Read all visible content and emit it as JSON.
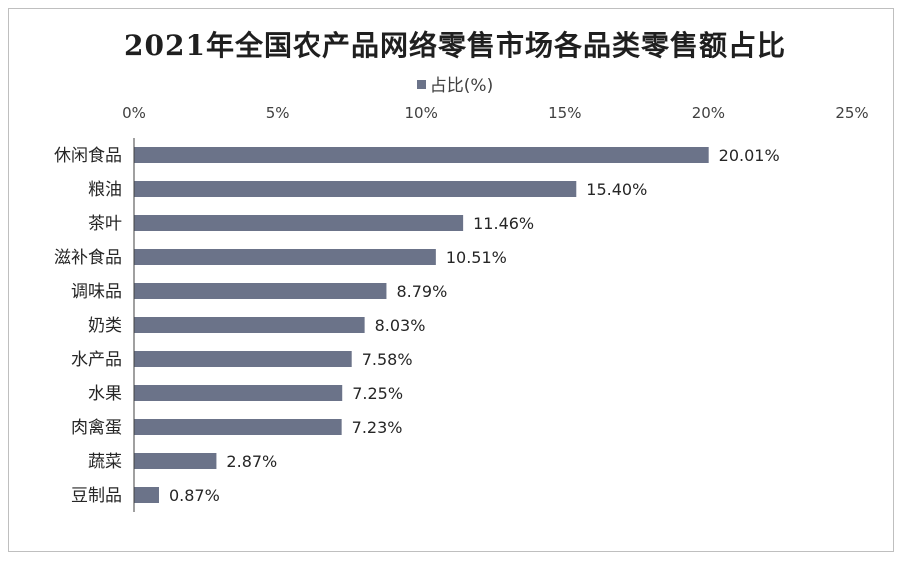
{
  "chart_data": {
    "type": "bar",
    "orientation": "horizontal",
    "title": "2021年全国农产品网络零售市场各品类零售额占比",
    "series": [
      {
        "name": "占比(%)",
        "values": [
          20.01,
          15.4,
          11.46,
          10.51,
          8.79,
          8.03,
          7.58,
          7.25,
          7.23,
          2.87,
          0.87
        ]
      }
    ],
    "categories": [
      "休闲食品",
      "粮油",
      "茶叶",
      "滋补食品",
      "调味品",
      "奶类",
      "水产品",
      "水果",
      "肉禽蛋",
      "蔬菜",
      "豆制品"
    ],
    "data_labels": [
      "20.01%",
      "15.40%",
      "11.46%",
      "10.51%",
      "8.79%",
      "8.03%",
      "7.58%",
      "7.25%",
      "7.23%",
      "2.87%",
      "0.87%"
    ],
    "xlim": [
      0,
      25
    ],
    "x_ticks": [
      0,
      5,
      10,
      15,
      20,
      25
    ],
    "x_tick_labels": [
      "0%",
      "5%",
      "10%",
      "15%",
      "20%",
      "25%"
    ],
    "x_axis_position": "top",
    "legend_position": "top",
    "grid": false,
    "bar_color": "#6b7389"
  }
}
